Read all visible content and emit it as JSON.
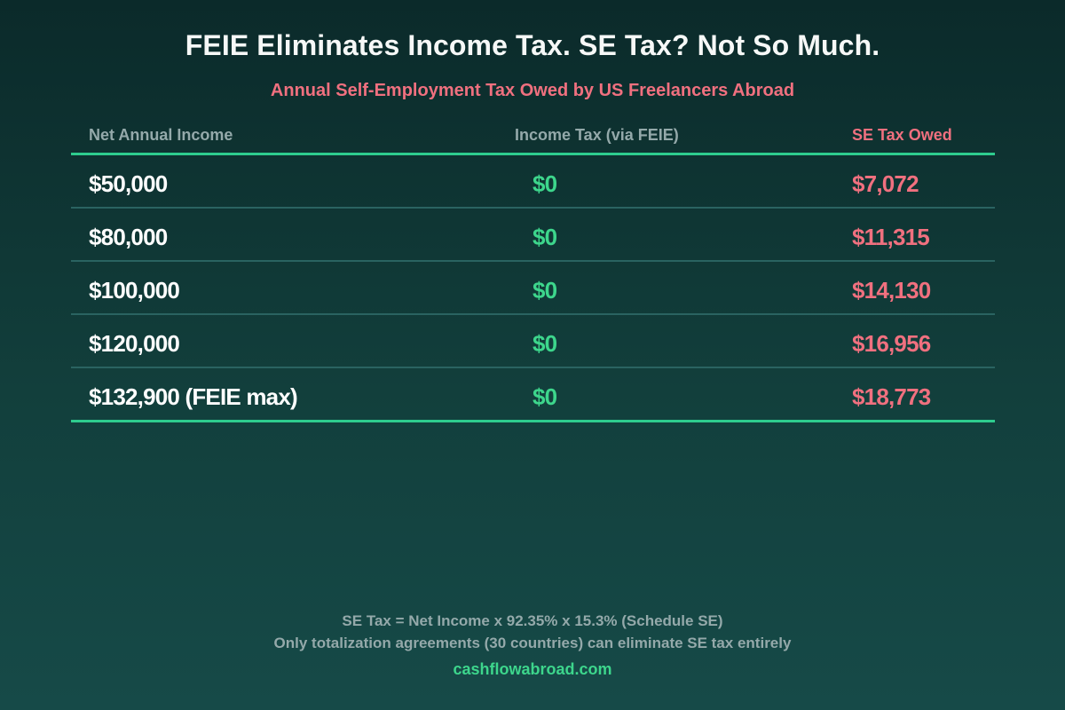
{
  "title": "FEIE Eliminates Income Tax. SE Tax? Not So Much.",
  "subtitle": "Annual Self-Employment Tax Owed by US Freelancers Abroad",
  "colors": {
    "accent_green": "#3dd68c",
    "accent_red": "#f0707f",
    "muted_text": "#94a9aa",
    "rule_green": "#2ecc8e"
  },
  "chart_data": {
    "type": "table",
    "title": "FEIE Eliminates Income Tax. SE Tax? Not So Much.",
    "subtitle": "Annual Self-Employment Tax Owed by US Freelancers Abroad",
    "columns": [
      "Net Annual Income",
      "Income Tax (via FEIE)",
      "SE Tax Owed"
    ],
    "rows": [
      [
        "$50,000",
        "$0",
        "$7,072"
      ],
      [
        "$80,000",
        "$0",
        "$11,315"
      ],
      [
        "$100,000",
        "$0",
        "$14,130"
      ],
      [
        "$120,000",
        "$0",
        "$16,956"
      ],
      [
        "$132,900 (FEIE max)",
        "$0",
        "$18,773"
      ]
    ],
    "series": [
      {
        "name": "Income Tax (via FEIE)",
        "values": [
          0,
          0,
          0,
          0,
          0
        ]
      },
      {
        "name": "SE Tax Owed",
        "values": [
          7072,
          11315,
          14130,
          16956,
          18773
        ]
      }
    ],
    "categories": [
      50000,
      80000,
      100000,
      120000,
      132900
    ]
  },
  "footer": {
    "formula": "SE Tax = Net Income x 92.35% x 15.3% (Schedule SE)",
    "note": "Only totalization agreements (30 countries) can eliminate SE tax entirely",
    "site": "cashflowabroad.com"
  }
}
